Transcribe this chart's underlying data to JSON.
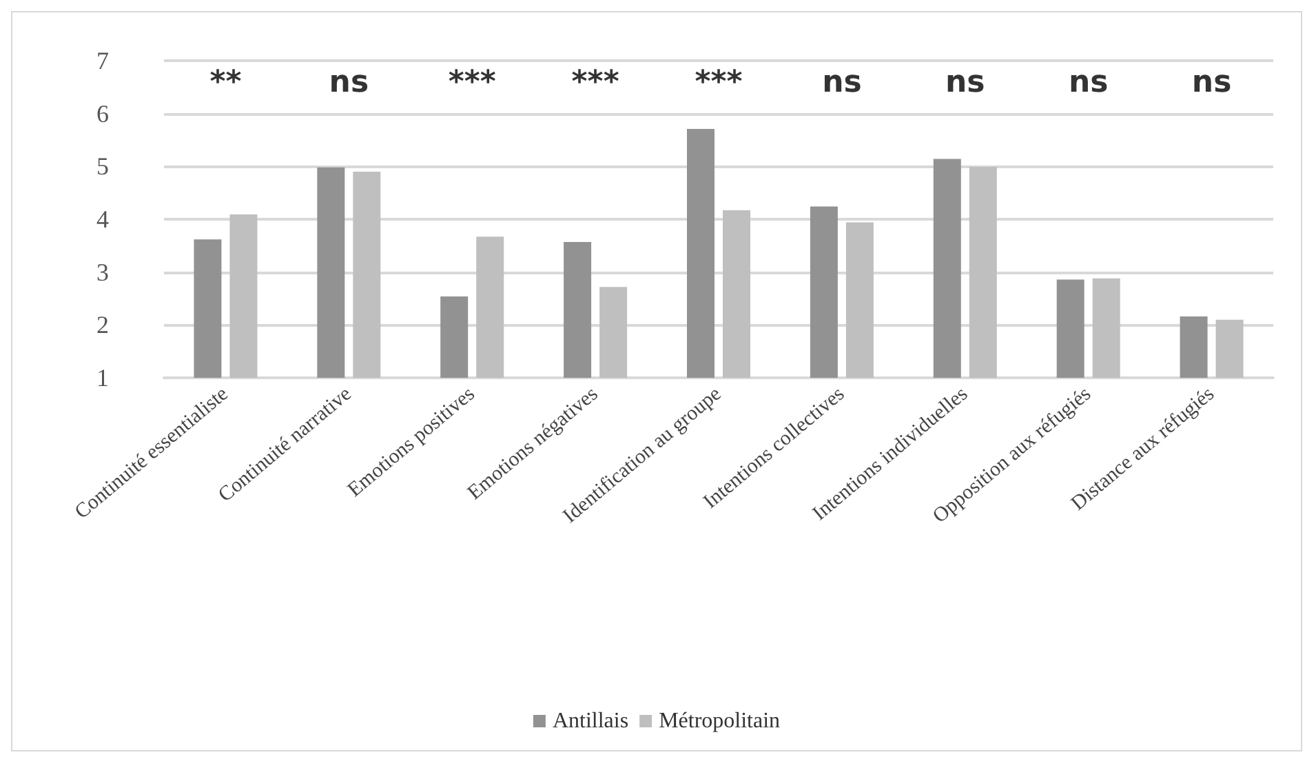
{
  "chart_data": {
    "type": "bar",
    "categories": [
      "Continuité essentialiste",
      "Continuité narrative",
      "Emotions positives",
      "Emotions négatives",
      "Identification au groupe",
      "Intentions collectives",
      "Intentions individuelles",
      "Opposition aux réfugiés",
      "Distance aux réfugiés"
    ],
    "series": [
      {
        "name": "Antillais",
        "color": "#929292",
        "values": [
          3.62,
          4.98,
          2.54,
          3.57,
          5.71,
          4.24,
          5.14,
          2.86,
          2.16
        ]
      },
      {
        "name": "Métropolitain",
        "color": "#bfbfbf",
        "values": [
          4.09,
          4.9,
          3.67,
          2.72,
          4.17,
          3.94,
          4.99,
          2.88,
          2.1
        ]
      }
    ],
    "ylim": [
      1,
      7
    ],
    "yticks": [
      1,
      2,
      3,
      4,
      5,
      6,
      7
    ],
    "grid": "y",
    "legend": "bottom",
    "annotations": [
      "**",
      "ns",
      "***",
      "***",
      "***",
      "ns",
      "ns",
      "ns",
      "ns"
    ]
  }
}
